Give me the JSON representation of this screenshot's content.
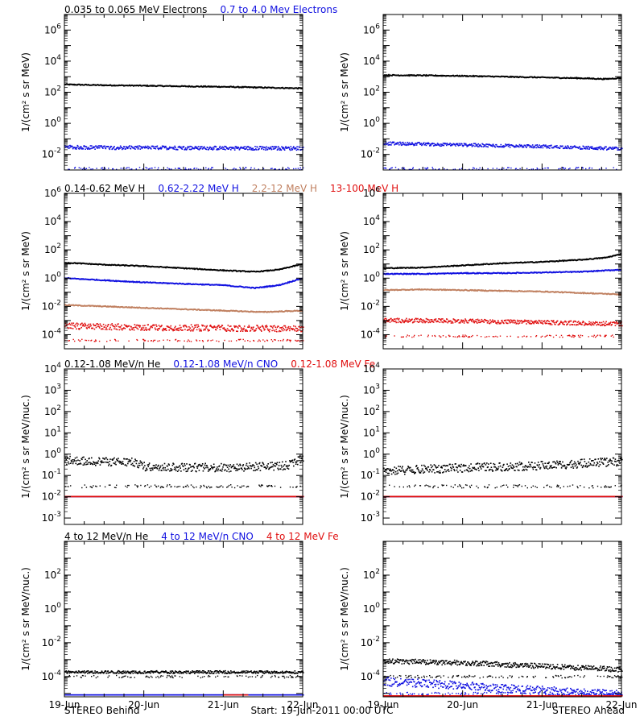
{
  "colors": {
    "black": "#000000",
    "blue": "#1010e0",
    "tan": "#c08060",
    "red": "#e01010"
  },
  "footer": {
    "left": "STEREO Behind",
    "center": "Start: 19-Jun-2011 00:00 UTC",
    "right": "STEREO Ahead"
  },
  "x_ticks": [
    "19-Jun",
    "20-Jun",
    "21-Jun",
    "22-Jun"
  ],
  "chart_data": [
    {
      "type": "scatter",
      "row": 1,
      "title_parts": [
        {
          "text": "0.035 to 0.065 MeV Electrons",
          "color": "black"
        },
        {
          "text": "0.7 to 4.0 Mev Electrons",
          "color": "blue"
        }
      ],
      "ylabel": "1/(cm² s sr MeV)",
      "yscale": "log",
      "ylim_log10": [
        -3,
        7
      ],
      "ytick_exponents": [
        -2,
        0,
        2,
        4,
        6
      ],
      "xlim_days": [
        0,
        3
      ],
      "panels": [
        {
          "spacecraft": "STEREO Behind",
          "series": [
            {
              "name": "0.035 to 0.065 MeV Electrons",
              "color": "black",
              "style": "line",
              "x_days": [
                0,
                0.5,
                1,
                1.5,
                2,
                2.5,
                3
              ],
              "log10_y": [
                2.5,
                2.45,
                2.42,
                2.38,
                2.35,
                2.3,
                2.25
              ]
            },
            {
              "name": "0.7 to 4.0 Mev Electrons",
              "color": "blue",
              "style": "dots",
              "x_days": [
                0,
                1,
                2,
                3
              ],
              "log10_y": [
                -1.55,
                -1.58,
                -1.6,
                -1.62
              ],
              "scatter": 0.12,
              "min_log10": -3
            }
          ]
        },
        {
          "spacecraft": "STEREO Ahead",
          "series": [
            {
              "name": "0.035 to 0.065 MeV Electrons",
              "color": "black",
              "style": "line",
              "x_days": [
                0,
                0.5,
                1,
                1.5,
                2,
                2.5,
                2.8,
                3
              ],
              "log10_y": [
                3.1,
                3.08,
                3.05,
                3.0,
                2.95,
                2.9,
                2.85,
                2.92
              ]
            },
            {
              "name": "0.7 to 4.0 Mev Electrons",
              "color": "blue",
              "style": "dots",
              "x_days": [
                0,
                1,
                2,
                3
              ],
              "log10_y": [
                -1.3,
                -1.4,
                -1.5,
                -1.65
              ],
              "scatter": 0.1,
              "min_log10": -3
            }
          ]
        }
      ]
    },
    {
      "type": "scatter",
      "row": 2,
      "title_parts": [
        {
          "text": "0.14-0.62 MeV H",
          "color": "black"
        },
        {
          "text": "0.62-2.22 MeV H",
          "color": "blue"
        },
        {
          "text": "2.2-12 MeV H",
          "color": "tan"
        },
        {
          "text": "13-100 MeV H",
          "color": "red"
        }
      ],
      "ylabel": "1/(cm² s sr MeV)",
      "yscale": "log",
      "ylim_log10": [
        -5,
        6
      ],
      "ytick_exponents": [
        -4,
        -2,
        0,
        2,
        4,
        6
      ],
      "xlim_days": [
        0,
        3
      ],
      "panels": [
        {
          "spacecraft": "STEREO Behind",
          "series": [
            {
              "name": "0.14-0.62 MeV H",
              "color": "black",
              "style": "line",
              "x_days": [
                0,
                0.5,
                1,
                1.5,
                2,
                2.4,
                2.7,
                3
              ],
              "log10_y": [
                1.1,
                0.95,
                0.85,
                0.7,
                0.55,
                0.45,
                0.6,
                1.0
              ]
            },
            {
              "name": "0.62-2.22 MeV H",
              "color": "blue",
              "style": "line",
              "x_days": [
                0,
                0.5,
                1,
                1.5,
                2,
                2.4,
                2.7,
                3
              ],
              "log10_y": [
                0.0,
                -0.15,
                -0.3,
                -0.4,
                -0.5,
                -0.7,
                -0.5,
                0.0
              ]
            },
            {
              "name": "2.2-12 MeV H",
              "color": "tan",
              "style": "line",
              "x_days": [
                0,
                0.5,
                1,
                1.5,
                2,
                2.5,
                3
              ],
              "log10_y": [
                -1.9,
                -2.0,
                -2.1,
                -2.2,
                -2.3,
                -2.4,
                -2.3
              ]
            },
            {
              "name": "13-100 MeV H",
              "color": "red",
              "style": "dots",
              "x_days": [
                0,
                1,
                2,
                3
              ],
              "log10_y": [
                -3.4,
                -3.5,
                -3.55,
                -3.6
              ],
              "scatter": 0.22,
              "min_log10": -4.5
            }
          ]
        },
        {
          "spacecraft": "STEREO Ahead",
          "series": [
            {
              "name": "0.14-0.62 MeV H",
              "color": "black",
              "style": "line",
              "x_days": [
                0,
                0.5,
                1,
                1.5,
                2,
                2.5,
                2.8,
                3
              ],
              "log10_y": [
                0.7,
                0.75,
                0.9,
                1.05,
                1.15,
                1.3,
                1.45,
                1.7
              ]
            },
            {
              "name": "0.62-2.22 MeV H",
              "color": "blue",
              "style": "line",
              "x_days": [
                0,
                0.5,
                1,
                1.5,
                2,
                2.5,
                3
              ],
              "log10_y": [
                0.3,
                0.3,
                0.35,
                0.35,
                0.4,
                0.45,
                0.6
              ]
            },
            {
              "name": "2.2-12 MeV H",
              "color": "tan",
              "style": "line",
              "x_days": [
                0,
                0.5,
                1,
                1.5,
                2,
                2.5,
                3
              ],
              "log10_y": [
                -0.85,
                -0.8,
                -0.85,
                -0.9,
                -0.95,
                -1.05,
                -1.15
              ]
            },
            {
              "name": "13-100 MeV H",
              "color": "red",
              "style": "dots",
              "x_days": [
                0,
                1,
                2,
                3
              ],
              "log10_y": [
                -3.0,
                -3.05,
                -3.15,
                -3.25
              ],
              "scatter": 0.15,
              "min_log10": -4.2
            }
          ]
        }
      ]
    },
    {
      "type": "scatter",
      "row": 3,
      "title_parts": [
        {
          "text": "0.12-1.08 MeV/n He",
          "color": "black"
        },
        {
          "text": "0.12-1.08 MeV/n CNO",
          "color": "blue"
        },
        {
          "text": "0.12-1.08 MeV Fe",
          "color": "red"
        }
      ],
      "ylabel": "1/(cm² s sr MeV/nuc.)",
      "yscale": "log",
      "ylim_log10": [
        -3.3,
        4
      ],
      "ytick_exponents": [
        -3,
        -2,
        -1,
        0,
        1,
        2,
        3,
        4
      ],
      "xlim_days": [
        0,
        3
      ],
      "panels": [
        {
          "spacecraft": "STEREO Behind",
          "series": [
            {
              "name": "0.12-1.08 MeV/n He",
              "color": "black",
              "style": "dots",
              "x_days": [
                0,
                0.9,
                1.0,
                2.0,
                2.8,
                3
              ],
              "log10_y": [
                -0.3,
                -0.4,
                -0.6,
                -0.65,
                -0.55,
                -0.2
              ],
              "scatter": 0.2,
              "min_log10": -1.6
            },
            {
              "name": "0.12-1.08 MeV/n CNO",
              "color": "blue",
              "style": "dots",
              "x_days": [
                0,
                3
              ],
              "log10_y": [
                -2.0,
                -2.0
              ],
              "scatter": 0.0,
              "min_log10": -2.0
            },
            {
              "name": "0.12-1.08 MeV Fe",
              "color": "red",
              "style": "dots",
              "x_days": [
                0,
                3
              ],
              "log10_y": [
                -2.0,
                -2.0
              ],
              "scatter": 0.0,
              "min_log10": -2.0
            }
          ]
        },
        {
          "spacecraft": "STEREO Ahead",
          "series": [
            {
              "name": "0.12-1.08 MeV/n He",
              "color": "black",
              "style": "dots",
              "x_days": [
                0,
                1,
                2,
                3
              ],
              "log10_y": [
                -0.8,
                -0.65,
                -0.55,
                -0.35
              ],
              "scatter": 0.2,
              "min_log10": -1.6
            },
            {
              "name": "0.12-1.08 MeV/n CNO",
              "color": "blue",
              "style": "dots",
              "x_days": [
                0,
                3
              ],
              "log10_y": [
                -2.0,
                -2.0
              ],
              "scatter": 0.0,
              "min_log10": -2.0
            },
            {
              "name": "0.12-1.08 MeV Fe",
              "color": "red",
              "style": "dots",
              "x_days": [
                0,
                3
              ],
              "log10_y": [
                -2.0,
                -2.0
              ],
              "scatter": 0.0,
              "min_log10": -2.0
            }
          ]
        }
      ]
    },
    {
      "type": "scatter",
      "row": 4,
      "title_parts": [
        {
          "text": "4 to 12 MeV/n He",
          "color": "black"
        },
        {
          "text": "4 to 12 MeV/n CNO",
          "color": "blue"
        },
        {
          "text": "4 to 12 MeV Fe",
          "color": "red"
        }
      ],
      "ylabel": "1/(cm² s sr MeV/nuc.)",
      "yscale": "log",
      "ylim_log10": [
        -5.2,
        4
      ],
      "ytick_exponents": [
        -4,
        -2,
        0,
        2
      ],
      "xlim_days": [
        0,
        3
      ],
      "panels": [
        {
          "spacecraft": "STEREO Behind",
          "series": [
            {
              "name": "4 to 12 MeV/n He",
              "color": "black",
              "style": "dots",
              "x_days": [
                0,
                3
              ],
              "log10_y": [
                -3.75,
                -3.75
              ],
              "scatter": 0.08,
              "min_log10": -4.1
            },
            {
              "name": "4 to 12 MeV/n CNO",
              "color": "blue",
              "style": "dots",
              "x_days": [
                0,
                3
              ],
              "log10_y": [
                -5.1,
                -5.1
              ],
              "scatter": 0.0,
              "min_log10": -5.1
            },
            {
              "name": "4 to 12 MeV Fe",
              "color": "red",
              "style": "dots",
              "x_days": [
                2.0,
                2.3
              ],
              "log10_y": [
                -5.1,
                -5.1
              ],
              "scatter": 0.0,
              "min_log10": -5.1
            }
          ]
        },
        {
          "spacecraft": "STEREO Ahead",
          "series": [
            {
              "name": "4 to 12 MeV/n He",
              "color": "black",
              "style": "dots",
              "x_days": [
                0,
                1,
                2,
                3
              ],
              "log10_y": [
                -3.1,
                -3.2,
                -3.4,
                -3.6
              ],
              "scatter": 0.15,
              "min_log10": -4.1
            },
            {
              "name": "4 to 12 MeV/n CNO",
              "color": "blue",
              "style": "dots",
              "x_days": [
                0,
                1.5,
                3
              ],
              "log10_y": [
                -4.3,
                -4.7,
                -5.1
              ],
              "scatter": 0.25,
              "min_log10": -5.1
            },
            {
              "name": "4 to 12 MeV Fe",
              "color": "red",
              "style": "dots",
              "x_days": [
                0,
                3
              ],
              "log10_y": [
                -5.15,
                -5.15
              ],
              "scatter": 0.0,
              "min_log10": -5.15
            }
          ]
        }
      ]
    }
  ]
}
